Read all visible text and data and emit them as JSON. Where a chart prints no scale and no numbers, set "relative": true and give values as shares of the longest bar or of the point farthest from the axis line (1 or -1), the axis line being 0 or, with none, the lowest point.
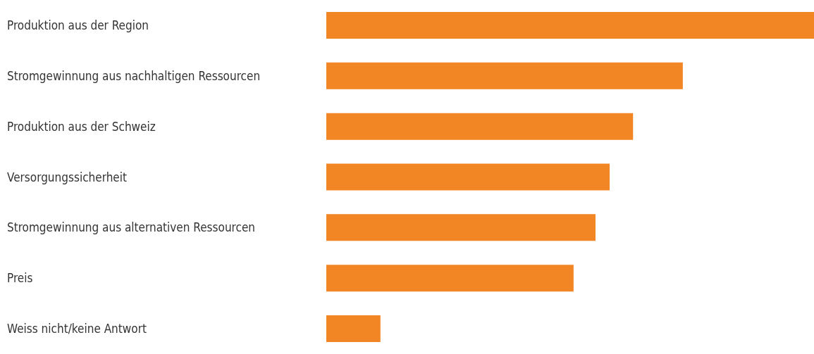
{
  "chart_data": {
    "type": "bar",
    "orientation": "horizontal",
    "relative": true,
    "categories": [
      "Produktion aus der Region",
      "Stromgewinnung aus nachhaltigen Ressourcen",
      "Produktion aus der Schweiz",
      "Versorgungssicherheit",
      "Stromgewinnung aus alternativen Ressourcen",
      "Preis",
      "Weiss nicht/keine Antwort"
    ],
    "values": [
      1,
      0.731,
      0.629,
      0.581,
      0.552,
      0.507,
      0.111
    ],
    "color": "#f28524"
  }
}
